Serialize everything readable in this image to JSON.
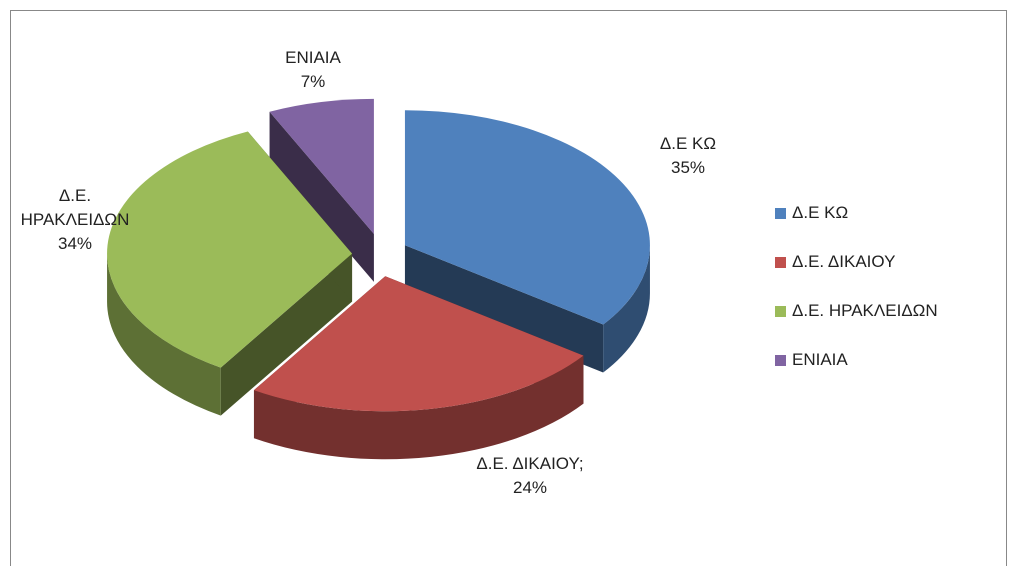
{
  "chart_data": {
    "type": "pie3d",
    "categories": [
      "Δ.Ε ΚΩ",
      "Δ.Ε. ΔΙΚΑΙΟΥ",
      "Δ.Ε. ΗΡΑΚΛΕΙΔΩΝ",
      "ΕΝΙΑΙΑ"
    ],
    "values": [
      35,
      24,
      34,
      7
    ],
    "value_labels": [
      "35%",
      "24%",
      "34%",
      "7%"
    ],
    "data_label_names": [
      "Δ.Ε ΚΩ",
      "Δ.Ε. ΔΙΚΑΙΟΥ;",
      "Δ.Ε. ΗΡΑΚΛΕΙΔΩΝ",
      "ΕΝΙΑΙΑ"
    ],
    "colors": [
      "#4f81bd",
      "#c0504d",
      "#9bbb59",
      "#8064a2"
    ],
    "legend": "right"
  }
}
